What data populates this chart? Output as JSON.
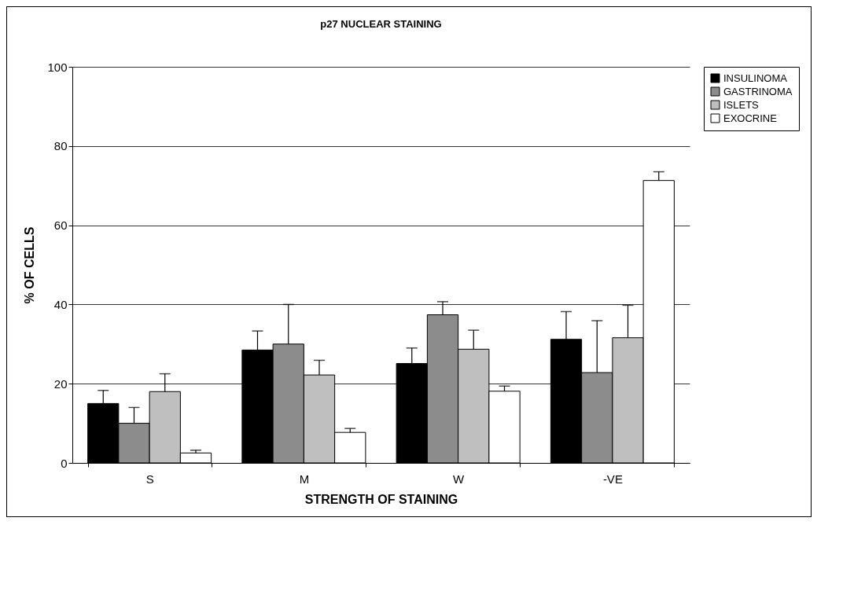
{
  "chart_data": {
    "type": "bar",
    "title": "p27 NUCLEAR STAINING",
    "xlabel": "STRENGTH OF STAINING",
    "ylabel": "% OF CELLS",
    "categories": [
      "S",
      "M",
      "W",
      "-VE"
    ],
    "series": [
      {
        "name": "INSULINOMA",
        "color": "#000000",
        "values": [
          15,
          28.5,
          25.1,
          31.2
        ],
        "errors": [
          3.3,
          4.8,
          3.9,
          7
        ]
      },
      {
        "name": "GASTRINOMA",
        "color": "#8c8c8c",
        "values": [
          10,
          30,
          37.4,
          22.8
        ],
        "errors": [
          4,
          10,
          3.3,
          13.1
        ]
      },
      {
        "name": "ISLETS",
        "color": "#bfbfbf",
        "values": [
          18,
          22.2,
          28.7,
          31.6
        ],
        "errors": [
          4.5,
          3.7,
          4.8,
          8.2
        ]
      },
      {
        "name": "EXOCRINE",
        "color": "#ffffff",
        "values": [
          2.5,
          7.7,
          18.1,
          71.3
        ],
        "errors": [
          0.7,
          1,
          1.3,
          2.2
        ]
      }
    ],
    "ylim": [
      0,
      100
    ],
    "yticks": [
      0,
      20,
      40,
      60,
      80,
      100
    ],
    "grid": "y",
    "legend": "right"
  }
}
